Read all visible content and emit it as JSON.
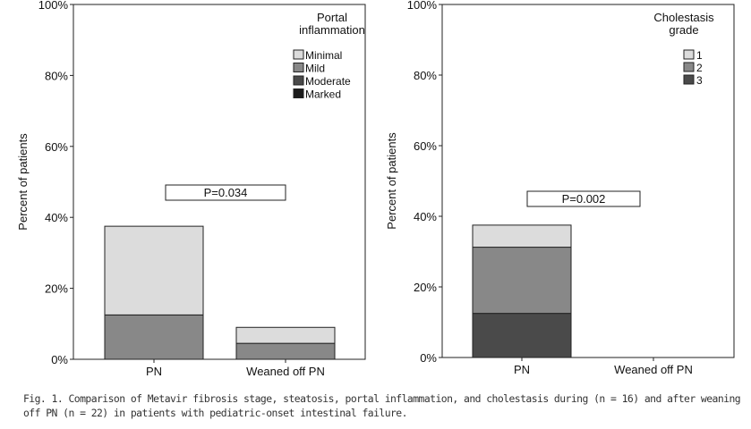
{
  "figure": {
    "caption": "Fig. 1. Comparison of Metavir fibrosis stage, steatosis, portal inflammation, and cholestasis during (n = 16) and after weaning off PN (n = 22) in patients with pediatric-onset intestinal failure."
  },
  "chart_data": [
    {
      "type": "bar",
      "stacked": true,
      "ylabel": "Percent of patients",
      "categories": [
        "PN",
        "Weaned off PN"
      ],
      "ylim": [
        0,
        100
      ],
      "yticks": [
        "0%",
        "20%",
        "40%",
        "60%",
        "80%",
        "100%"
      ],
      "legend_title": [
        "Portal",
        "inflammation"
      ],
      "legend_position": "top-right",
      "grid": false,
      "annotation": "P=0.034",
      "series": [
        {
          "name": "Minimal",
          "color": "#dcdcdc",
          "values": [
            25.0,
            4.5
          ]
        },
        {
          "name": "Mild",
          "color": "#888888",
          "values": [
            12.5,
            4.5
          ]
        },
        {
          "name": "Moderate",
          "color": "#4a4a4a",
          "values": [
            0,
            0
          ]
        },
        {
          "name": "Marked",
          "color": "#1c1c1c",
          "values": [
            0,
            0
          ]
        }
      ]
    },
    {
      "type": "bar",
      "stacked": true,
      "ylabel": "Percent of patients",
      "categories": [
        "PN",
        "Weaned off PN"
      ],
      "ylim": [
        0,
        100
      ],
      "yticks": [
        "0%",
        "20%",
        "40%",
        "60%",
        "80%",
        "100%"
      ],
      "legend_title": [
        "Cholestasis",
        "grade"
      ],
      "legend_position": "top-right",
      "grid": false,
      "annotation": "P=0.002",
      "series": [
        {
          "name": "1",
          "color": "#dcdcdc",
          "values": [
            6.25,
            0
          ]
        },
        {
          "name": "2",
          "color": "#888888",
          "values": [
            18.75,
            0
          ]
        },
        {
          "name": "3",
          "color": "#4a4a4a",
          "values": [
            12.5,
            0
          ]
        }
      ]
    }
  ]
}
